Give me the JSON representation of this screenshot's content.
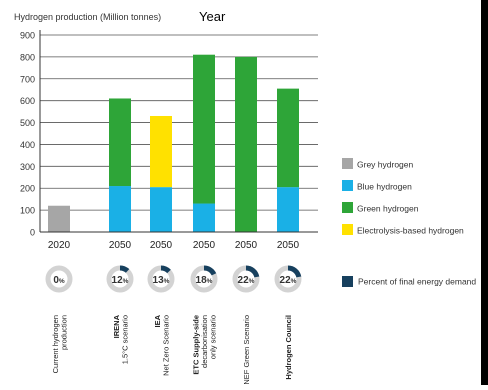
{
  "chart_data": {
    "type": "bar",
    "title": "Hydrogen production (Million tonnes)",
    "overlay_label": "Year",
    "ylim": [
      0,
      900
    ],
    "yticks": [
      0,
      100,
      200,
      300,
      400,
      500,
      600,
      700,
      800,
      900
    ],
    "categories": [
      "2020",
      "2050",
      "2050",
      "2050",
      "2050",
      "2050"
    ],
    "scenario_labels": [
      "Current hydrogen production",
      "IRENA 1.5°C scenario",
      "IEA Net Zero Scenario",
      "ETC Supply-side decarbonisation only scenario",
      "BNEF Green Scenario",
      "Hydrogen Council"
    ],
    "series": [
      {
        "name": "Grey hydrogen",
        "color": "#a6a6a6",
        "values": [
          120,
          0,
          0,
          0,
          0,
          0
        ]
      },
      {
        "name": "Blue hydrogen",
        "color": "#1ab0e6",
        "values": [
          0,
          210,
          205,
          130,
          0,
          205
        ]
      },
      {
        "name": "Green hydrogen",
        "color": "#2ea538",
        "values": [
          0,
          400,
          0,
          680,
          800,
          450
        ]
      },
      {
        "name": "Electrolysis-based hydrogen",
        "color": "#ffe100",
        "values": [
          0,
          0,
          325,
          0,
          0,
          0
        ]
      }
    ],
    "share_series": {
      "name": "Percent of final energy demand",
      "color": "#17405e",
      "values": [
        0,
        12,
        13,
        18,
        22,
        22
      ]
    },
    "grid": true,
    "legend_position": "right"
  }
}
